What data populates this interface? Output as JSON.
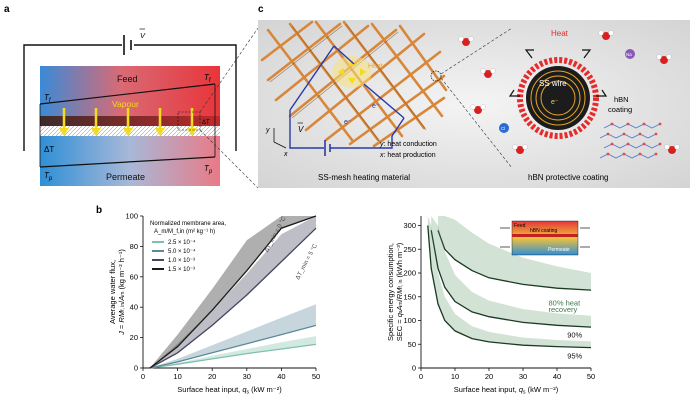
{
  "panel_labels": {
    "a": "a",
    "b": "b",
    "c": "c"
  },
  "panel_a": {
    "voltage": "V",
    "feed": "Feed",
    "vapour": "Vapour",
    "permeate": "Permeate",
    "t_f_left": "T",
    "t_f_left_sub": "f",
    "t_f_right": "T",
    "t_f_right_sub": "f",
    "t_p_left": "T",
    "t_p_left_sub": "p",
    "t_p_right": "T",
    "t_p_right_sub": "p",
    "delta_t": "ΔT",
    "delta_t_right": "ΔT",
    "colors": {
      "feed_hot": "#e8333a",
      "cold": "#2f8fd6",
      "vapour": "#f2dc1d"
    }
  },
  "panel_c": {
    "heat_small": "Heat",
    "heat_big": "Heat",
    "voltage": "V",
    "axis_y": "y",
    "axis_x": "x",
    "electron": "e⁻",
    "legend_y": ": heat conduction",
    "legend_x": ": heat production",
    "legend_y_key": "y",
    "legend_x_key": "x",
    "ss_wire": "SS wire",
    "hbn_coating": "hBN",
    "hbn_coating2": "coating",
    "caption_left": "SS-mesh heating material",
    "caption_right": "hBN protective coating",
    "ion_na": "Na",
    "ion_cl": "Cl",
    "colors": {
      "wire": "#d8873a",
      "circuit": "#2a3aa8",
      "heat": "#e52b2b"
    }
  },
  "chart_data": [
    {
      "type": "area",
      "title": "",
      "xlabel": "Surface heat input, q_s (kW m⁻²)",
      "ylabel": "Average water flux, J = RM_f,in / A_m (kg m⁻² h⁻¹)",
      "xlim": [
        0,
        50
      ],
      "ylim": [
        0,
        100
      ],
      "xticks": [
        0,
        10,
        20,
        30,
        40,
        50
      ],
      "yticks": [
        0,
        20,
        40,
        60,
        80,
        100
      ],
      "legend_title": "Normalized membrane area,",
      "legend_title2": "A_m/M_f,in (m² kg⁻¹ h)",
      "annotations": [
        "ΔT_min = 0 °C",
        "ΔT_min = 5 °C"
      ],
      "series": [
        {
          "name": "2.5 × 10⁻⁴",
          "color": "#7fbfad",
          "x": [
            2,
            10,
            20,
            30,
            40,
            50
          ],
          "lower": [
            0,
            2.5,
            6,
            9.5,
            12.5,
            15.5
          ],
          "upper": [
            0,
            3.3,
            8,
            12.5,
            17,
            21
          ]
        },
        {
          "name": "5.0 × 10⁻⁴",
          "color": "#5d8a9a",
          "x": [
            2,
            10,
            20,
            30,
            40,
            50
          ],
          "lower": [
            0,
            4,
            10,
            16,
            22,
            28
          ],
          "upper": [
            0,
            6,
            15,
            24,
            33,
            42
          ]
        },
        {
          "name": "1.0 × 10⁻³",
          "color": "#45455f",
          "x": [
            2,
            10,
            20,
            30,
            40,
            50
          ],
          "lower": [
            0,
            10,
            28,
            48,
            70,
            92
          ],
          "upper": [
            0,
            16,
            38,
            62,
            88,
            100
          ]
        },
        {
          "name": "1.5 × 10⁻³",
          "color": "#1b1b1b",
          "x": [
            2,
            10,
            20,
            30,
            40,
            50
          ],
          "lower": [
            0,
            14,
            38,
            64,
            92,
            100
          ],
          "upper": [
            0,
            22,
            52,
            84,
            100,
            100
          ]
        }
      ]
    },
    {
      "type": "area",
      "title": "",
      "xlabel": "Surface heat input, q_s (kW m⁻²)",
      "ylabel": "Specific energy consumption, SEC = q_s A_m / RM_f,in (kWh m⁻³)",
      "xlim": [
        0,
        50
      ],
      "ylim": [
        0,
        320
      ],
      "xticks": [
        0,
        10,
        20,
        30,
        40,
        50
      ],
      "yticks": [
        0,
        50,
        100,
        150,
        200,
        250,
        300
      ],
      "annotations": [
        "80% heat",
        "recovery",
        "90%",
        "95%"
      ],
      "inset": {
        "feed": "Feed",
        "hbn": "hBN coating",
        "permeate": "Permeate"
      },
      "series": [
        {
          "name": "80% heat recovery",
          "color": "#4a8a58",
          "x": [
            5,
            7,
            10,
            15,
            20,
            30,
            40,
            50
          ],
          "lower": [
            290,
            250,
            228,
            205,
            190,
            176,
            168,
            164
          ],
          "upper": [
            320,
            320,
            312,
            285,
            262,
            232,
            214,
            200
          ]
        },
        {
          "name": "90%",
          "color": "#4a8a58",
          "x": [
            3,
            5,
            7,
            10,
            15,
            20,
            30,
            40,
            50
          ],
          "lower": [
            290,
            210,
            170,
            140,
            118,
            108,
            96,
            90,
            86
          ],
          "upper": [
            320,
            300,
            245,
            196,
            160,
            142,
            124,
            115,
            110
          ]
        },
        {
          "name": "95%",
          "color": "#4a8a58",
          "x": [
            2,
            3,
            5,
            7,
            10,
            15,
            20,
            30,
            40,
            50
          ],
          "lower": [
            300,
            210,
            135,
            100,
            78,
            62,
            55,
            48,
            45,
            43
          ],
          "upper": [
            320,
            300,
            200,
            150,
            114,
            88,
            76,
            64,
            59,
            56
          ]
        }
      ]
    }
  ]
}
